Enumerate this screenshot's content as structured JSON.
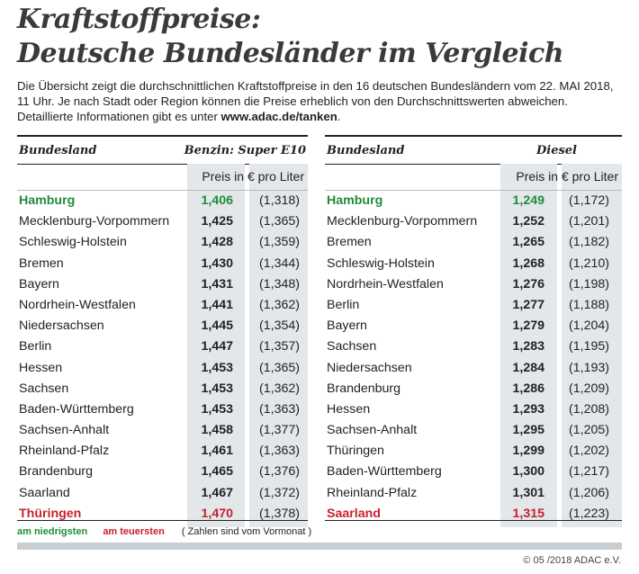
{
  "title_line1": "Kraftstoffpreise:",
  "title_line2": "Deutsche Bundesländer im Vergleich",
  "intro_text": "Die Übersicht zeigt die durchschnittlichen Kraftstoffpreise in den 16 deutschen Bundesländern vom 22. MAI    2018, 11 Uhr. Je nach Stadt oder Region können die Preise erheblich von den Durchschnittswerten abweichen. Detaillierte Informationen gibt es unter ",
  "intro_url": "www.adac.de/tanken",
  "intro_end": ".",
  "left": {
    "col_state": "Bundesland",
    "col_fuel": "Benzin:  Super E10",
    "unit": "Preis in € pro Liter",
    "rows": [
      {
        "state": "Hamburg",
        "price": "1,406",
        "prev": "(1,318)"
      },
      {
        "state": "Mecklenburg-Vorpommern",
        "price": "1,425",
        "prev": "(1,365)"
      },
      {
        "state": "Schleswig-Holstein",
        "price": "1,428",
        "prev": "(1,359)"
      },
      {
        "state": "Bremen",
        "price": "1,430",
        "prev": "(1,344)"
      },
      {
        "state": "Bayern",
        "price": "1,431",
        "prev": "(1,348)"
      },
      {
        "state": "Nordrhein-Westfalen",
        "price": "1,441",
        "prev": "(1,362)"
      },
      {
        "state": "Niedersachsen",
        "price": "1,445",
        "prev": "(1,354)"
      },
      {
        "state": "Berlin",
        "price": "1,447",
        "prev": "(1,357)"
      },
      {
        "state": "Hessen",
        "price": "1,453",
        "prev": "(1,365)"
      },
      {
        "state": "Sachsen",
        "price": "1,453",
        "prev": "(1,362)"
      },
      {
        "state": "Baden-Württemberg",
        "price": "1,453",
        "prev": "(1,363)"
      },
      {
        "state": "Sachsen-Anhalt",
        "price": "1,458",
        "prev": "(1,377)"
      },
      {
        "state": "Rheinland-Pfalz",
        "price": "1,461",
        "prev": "(1,363)"
      },
      {
        "state": "Brandenburg",
        "price": "1,465",
        "prev": "(1,376)"
      },
      {
        "state": "Saarland",
        "price": "1,467",
        "prev": "(1,372)"
      },
      {
        "state": "Thüringen",
        "price": "1,470",
        "prev": "(1,378)"
      }
    ]
  },
  "right": {
    "col_state": "Bundesland",
    "col_fuel": "Diesel",
    "unit": "Preis in € pro Liter",
    "rows": [
      {
        "state": "Hamburg",
        "price": "1,249",
        "prev": "(1,172)"
      },
      {
        "state": "Mecklenburg-Vorpommern",
        "price": "1,252",
        "prev": "(1,201)"
      },
      {
        "state": "Bremen",
        "price": "1,265",
        "prev": "(1,182)"
      },
      {
        "state": "Schleswig-Holstein",
        "price": "1,268",
        "prev": "(1,210)"
      },
      {
        "state": "Nordrhein-Westfalen",
        "price": "1,276",
        "prev": "(1,198)"
      },
      {
        "state": "Berlin",
        "price": "1,277",
        "prev": "(1,188)"
      },
      {
        "state": "Bayern",
        "price": "1,279",
        "prev": "(1,204)"
      },
      {
        "state": "Sachsen",
        "price": "1,283",
        "prev": "(1,195)"
      },
      {
        "state": "Niedersachsen",
        "price": "1,284",
        "prev": "(1,193)"
      },
      {
        "state": "Brandenburg",
        "price": "1,286",
        "prev": "(1,209)"
      },
      {
        "state": "Hessen",
        "price": "1,293",
        "prev": "(1,208)"
      },
      {
        "state": "Sachsen-Anhalt",
        "price": "1,295",
        "prev": "(1,205)"
      },
      {
        "state": "Thüringen",
        "price": "1,299",
        "prev": "(1,202)"
      },
      {
        "state": "Baden-Württemberg",
        "price": "1,300",
        "prev": "(1,217)"
      },
      {
        "state": "Rheinland-Pfalz",
        "price": "1,301",
        "prev": "(1,206)"
      },
      {
        "state": "Saarland",
        "price": "1,315",
        "prev": "(1,223)"
      }
    ]
  },
  "legend": {
    "lowest": "am niedrigsten",
    "highest": "am teuersten",
    "note": "( Zahlen sind vom Vormonat )"
  },
  "colors": {
    "lowest": "#1f8c3a",
    "highest": "#c8202f",
    "shade": "#e3e7ea"
  },
  "copyright": "© 05 /2018 ADAC e.V."
}
